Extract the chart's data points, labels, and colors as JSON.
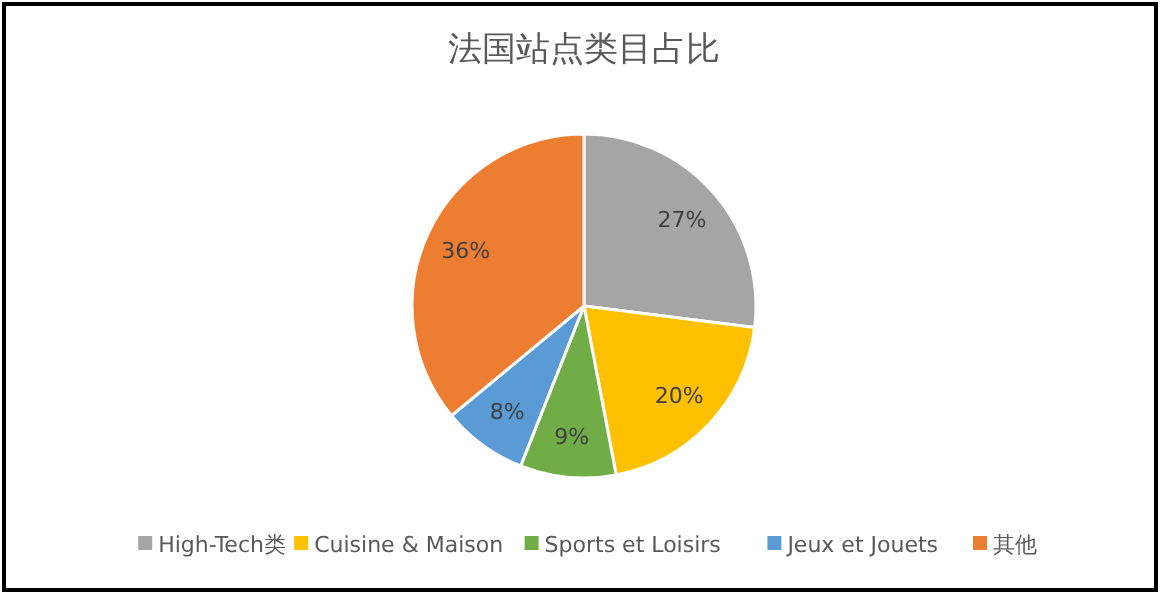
{
  "chart_data": {
    "type": "pie",
    "title": "法国站点类目占比",
    "categories": [
      "High-Tech类",
      "Cuisine & Maison",
      "Sports et Loisirs",
      "Jeux et Jouets",
      "其他"
    ],
    "values": [
      27,
      20,
      9,
      8,
      36
    ],
    "colors": [
      "#a5a5a5",
      "#ffc000",
      "#70ad47",
      "#5b9bd5",
      "#ed7d31"
    ],
    "value_labels": [
      "27%",
      "20%",
      "9%",
      "8%",
      "36%"
    ],
    "legend": "bottom"
  }
}
